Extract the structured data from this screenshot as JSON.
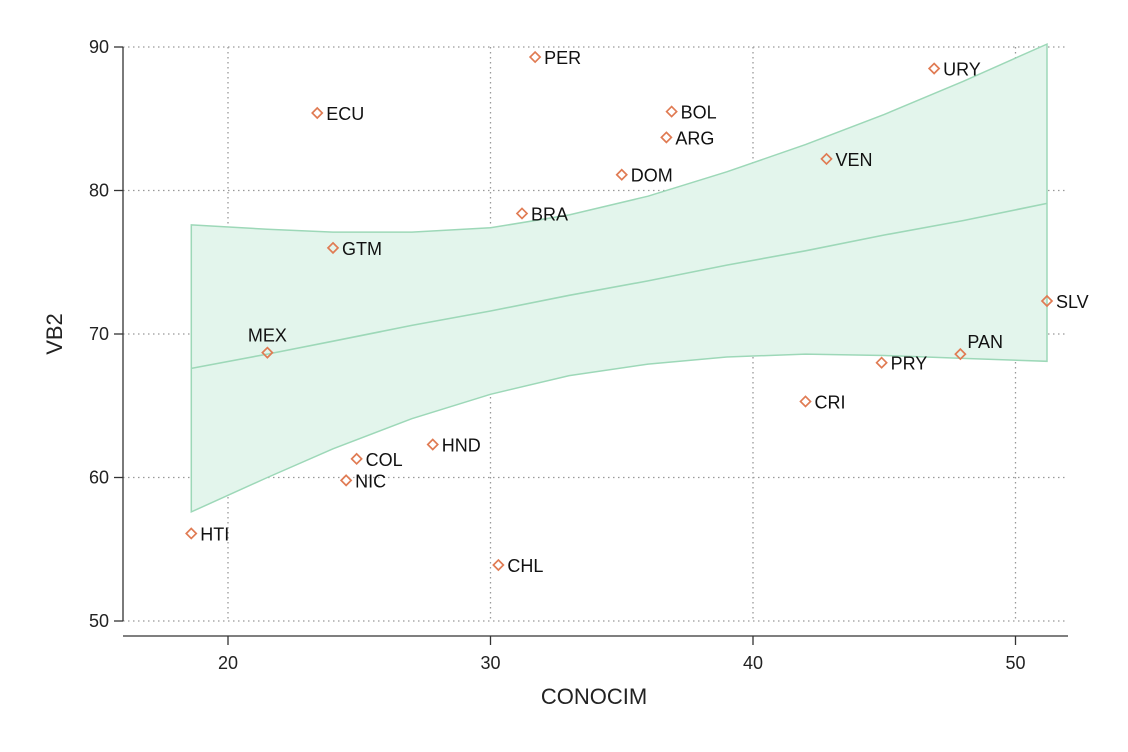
{
  "chart_data": {
    "type": "scatter",
    "xlabel": "CONOCIM",
    "ylabel": "VB2",
    "xlim": [
      16,
      52
    ],
    "ylim": [
      50,
      90
    ],
    "xticks": [
      20,
      30,
      40,
      50
    ],
    "yticks": [
      50,
      60,
      70,
      80,
      90
    ],
    "grid": true,
    "points": [
      {
        "label": "PER",
        "x": 31.7,
        "y": 89.3,
        "label_pos": "right"
      },
      {
        "label": "URY",
        "x": 46.9,
        "y": 88.5,
        "label_pos": "right"
      },
      {
        "label": "ECU",
        "x": 23.4,
        "y": 85.4,
        "label_pos": "right"
      },
      {
        "label": "BOL",
        "x": 36.9,
        "y": 85.5,
        "label_pos": "right"
      },
      {
        "label": "ARG",
        "x": 36.7,
        "y": 83.7,
        "label_pos": "right"
      },
      {
        "label": "VEN",
        "x": 42.8,
        "y": 82.2,
        "label_pos": "right"
      },
      {
        "label": "DOM",
        "x": 35.0,
        "y": 81.1,
        "label_pos": "right"
      },
      {
        "label": "BRA",
        "x": 31.2,
        "y": 78.4,
        "label_pos": "right"
      },
      {
        "label": "GTM",
        "x": 24.0,
        "y": 76.0,
        "label_pos": "right"
      },
      {
        "label": "SLV",
        "x": 51.2,
        "y": 72.3,
        "label_pos": "right"
      },
      {
        "label": "MEX",
        "x": 21.5,
        "y": 68.7,
        "label_pos": "above"
      },
      {
        "label": "PAN",
        "x": 47.9,
        "y": 68.6,
        "label_pos": "above-right"
      },
      {
        "label": "PRY",
        "x": 44.9,
        "y": 68.0,
        "label_pos": "right"
      },
      {
        "label": "CRI",
        "x": 42.0,
        "y": 65.3,
        "label_pos": "right"
      },
      {
        "label": "HND",
        "x": 27.8,
        "y": 62.3,
        "label_pos": "right"
      },
      {
        "label": "COL",
        "x": 24.9,
        "y": 61.3,
        "label_pos": "right"
      },
      {
        "label": "NIC",
        "x": 24.5,
        "y": 59.8,
        "label_pos": "right"
      },
      {
        "label": "HTI",
        "x": 18.6,
        "y": 56.1,
        "label_pos": "right"
      },
      {
        "label": "CHL",
        "x": 30.3,
        "y": 53.9,
        "label_pos": "right"
      }
    ],
    "fit_line": {
      "x": [
        18.6,
        21.5,
        24.0,
        27.0,
        30.0,
        33.0,
        36.0,
        39.0,
        42.0,
        45.0,
        48.0,
        51.2
      ],
      "y": [
        67.6,
        68.6,
        69.5,
        70.6,
        71.6,
        72.7,
        73.7,
        74.8,
        75.8,
        76.9,
        77.9,
        79.1
      ]
    },
    "confidence_band": {
      "x": [
        18.6,
        21.5,
        24.0,
        27.0,
        30.0,
        33.0,
        36.0,
        39.0,
        42.0,
        45.0,
        48.0,
        51.2
      ],
      "upper": [
        77.6,
        77.3,
        77.1,
        77.1,
        77.4,
        78.3,
        79.6,
        81.3,
        83.2,
        85.3,
        87.6,
        90.2
      ],
      "lower": [
        57.6,
        60.0,
        62.0,
        64.1,
        65.8,
        67.1,
        67.9,
        68.4,
        68.6,
        68.5,
        68.3,
        68.1
      ]
    },
    "colors": {
      "marker": "#e07b53",
      "band_fill": "#e3f5ec",
      "band_stroke": "#9dd8b8",
      "fit_line": "#9dd8b8",
      "grid": "#999999",
      "axis": "#333333"
    }
  }
}
